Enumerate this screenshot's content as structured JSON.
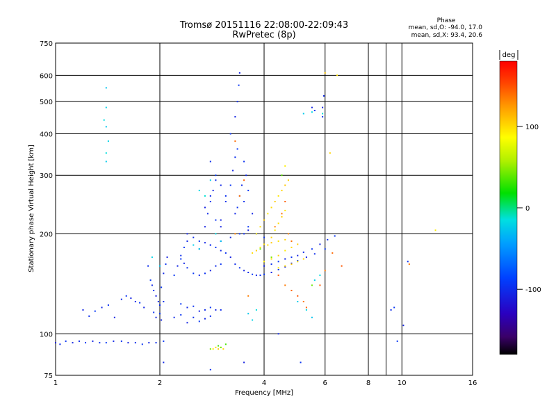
{
  "header": {
    "title": "Tromsø 20151116 22:08:00-22:09:43",
    "subtitle": "RwPretec (8p)"
  },
  "phase_box": {
    "heading": "Phase",
    "line_o": "mean, sd,O: -94.0, 17.0",
    "line_x": "mean, sd,X:  93.4, 20.6"
  },
  "colorbar": {
    "unit_label": "deg",
    "ticks": [
      {
        "value": 100,
        "label": "100"
      },
      {
        "value": 0,
        "label": "0"
      },
      {
        "value": -100,
        "label": "-100"
      }
    ],
    "range": [
      -180,
      180
    ]
  },
  "chart_data": {
    "type": "scatter",
    "title": "Tromsø 20151116 22:08:00-22:09:43",
    "subtitle": "RwPretec (8p)",
    "xlabel": "Frequency [MHz]",
    "ylabel": "Stationary phase Virtual Height [km]",
    "x_scale": "log",
    "y_scale": "log",
    "xlim": [
      1,
      16
    ],
    "ylim": [
      75,
      750
    ],
    "x_ticks": [
      {
        "value": 1,
        "label": "1"
      },
      {
        "value": 2,
        "label": "2"
      },
      {
        "value": 4,
        "label": "4"
      },
      {
        "value": 6,
        "label": "6"
      },
      {
        "value": 8,
        "label": "8"
      },
      {
        "value": 10,
        "label": "10"
      },
      {
        "value": 16,
        "label": "16"
      }
    ],
    "x_grid": [
      2,
      4,
      6,
      8,
      10
    ],
    "x_minor": [
      9
    ],
    "y_ticks": [
      {
        "value": 75,
        "label": "75"
      },
      {
        "value": 100,
        "label": "100"
      },
      {
        "value": 200,
        "label": "200"
      },
      {
        "value": 300,
        "label": "300"
      },
      {
        "value": 400,
        "label": "400"
      },
      {
        "value": 500,
        "label": "500"
      },
      {
        "value": 600,
        "label": "600"
      },
      {
        "value": 750,
        "label": "750"
      }
    ],
    "y_grid": [
      100,
      200,
      300,
      400,
      500,
      600
    ],
    "grid": true,
    "color_scale": "phase, rainbow, -180 to 180 deg",
    "series": [
      {
        "mode": "O",
        "phase": -100,
        "points": [
          [
            1.0,
            94
          ],
          [
            1.03,
            93
          ],
          [
            1.07,
            95
          ],
          [
            1.12,
            94
          ],
          [
            1.17,
            95
          ],
          [
            1.22,
            94
          ],
          [
            1.28,
            95
          ],
          [
            1.34,
            94
          ],
          [
            1.4,
            94
          ],
          [
            1.47,
            95
          ],
          [
            1.55,
            95
          ],
          [
            1.62,
            94
          ],
          [
            1.7,
            94
          ],
          [
            1.78,
            93
          ],
          [
            1.86,
            94
          ],
          [
            1.95,
            94
          ],
          [
            2.05,
            95
          ],
          [
            1.2,
            118
          ],
          [
            1.25,
            113
          ],
          [
            1.3,
            117
          ],
          [
            1.36,
            120
          ],
          [
            1.42,
            122
          ],
          [
            1.48,
            112
          ],
          [
            1.55,
            127
          ],
          [
            1.6,
            130
          ],
          [
            1.65,
            128
          ],
          [
            1.7,
            125
          ],
          [
            1.75,
            124
          ],
          [
            1.8,
            120
          ],
          [
            1.85,
            160
          ],
          [
            1.88,
            145
          ],
          [
            1.9,
            140
          ],
          [
            1.92,
            135
          ],
          [
            1.95,
            130
          ],
          [
            1.98,
            125
          ],
          [
            1.92,
            116
          ],
          [
            1.95,
            112
          ],
          [
            2.0,
            122
          ],
          [
            2.0,
            115
          ],
          [
            2.02,
            110
          ],
          [
            2.05,
            125
          ],
          [
            2.02,
            138
          ],
          [
            2.05,
            152
          ],
          [
            2.08,
            162
          ],
          [
            2.1,
            170
          ],
          [
            2.2,
            112
          ],
          [
            2.3,
            114
          ],
          [
            2.4,
            108
          ],
          [
            2.5,
            112
          ],
          [
            2.6,
            109
          ],
          [
            2.7,
            111
          ],
          [
            2.8,
            113
          ],
          [
            2.3,
            123
          ],
          [
            2.4,
            120
          ],
          [
            2.5,
            121
          ],
          [
            2.6,
            117
          ],
          [
            2.7,
            118
          ],
          [
            2.8,
            120
          ],
          [
            2.9,
            118
          ],
          [
            3.0,
            118
          ],
          [
            2.3,
            168
          ],
          [
            2.35,
            163
          ],
          [
            2.4,
            158
          ],
          [
            2.5,
            152
          ],
          [
            2.6,
            150
          ],
          [
            2.7,
            152
          ],
          [
            2.8,
            155
          ],
          [
            2.9,
            160
          ],
          [
            3.0,
            162
          ],
          [
            2.4,
            200
          ],
          [
            2.5,
            195
          ],
          [
            2.6,
            190
          ],
          [
            2.7,
            188
          ],
          [
            2.8,
            185
          ],
          [
            2.9,
            182
          ],
          [
            3.0,
            178
          ],
          [
            3.1,
            175
          ],
          [
            3.2,
            170
          ],
          [
            3.3,
            162
          ],
          [
            3.4,
            158
          ],
          [
            3.5,
            155
          ],
          [
            3.6,
            153
          ],
          [
            3.7,
            151
          ],
          [
            3.8,
            150
          ],
          [
            3.9,
            150
          ],
          [
            4.0,
            151
          ],
          [
            4.2,
            153
          ],
          [
            4.4,
            156
          ],
          [
            4.6,
            159
          ],
          [
            4.8,
            163
          ],
          [
            5.0,
            166
          ],
          [
            5.3,
            170
          ],
          [
            5.6,
            174
          ],
          [
            6.0,
            180
          ],
          [
            4.0,
            160
          ],
          [
            4.2,
            162
          ],
          [
            4.4,
            165
          ],
          [
            4.6,
            168
          ],
          [
            4.8,
            170
          ],
          [
            5.0,
            172
          ],
          [
            5.2,
            176
          ],
          [
            5.5,
            180
          ],
          [
            5.8,
            186
          ],
          [
            6.1,
            192
          ],
          [
            6.4,
            197
          ],
          [
            2.6,
            180
          ],
          [
            2.8,
            185
          ],
          [
            3.0,
            190
          ],
          [
            3.2,
            195
          ],
          [
            3.4,
            200
          ],
          [
            3.6,
            205
          ],
          [
            3.8,
            200
          ],
          [
            4.0,
            195
          ],
          [
            3.0,
            220
          ],
          [
            3.1,
            250
          ],
          [
            3.2,
            280
          ],
          [
            3.25,
            310
          ],
          [
            3.3,
            340
          ],
          [
            3.35,
            360
          ],
          [
            3.3,
            230
          ],
          [
            3.35,
            240
          ],
          [
            3.4,
            260
          ],
          [
            3.45,
            280
          ],
          [
            3.2,
            400
          ],
          [
            3.3,
            450
          ],
          [
            3.35,
            500
          ],
          [
            3.38,
            560
          ],
          [
            3.4,
            610
          ],
          [
            2.8,
            330
          ],
          [
            2.9,
            300
          ],
          [
            3.0,
            280
          ],
          [
            3.1,
            260
          ],
          [
            2.7,
            240
          ],
          [
            2.8,
            260
          ],
          [
            2.9,
            220
          ],
          [
            3.0,
            210
          ],
          [
            3.5,
            200
          ],
          [
            3.6,
            210
          ],
          [
            3.7,
            230
          ],
          [
            3.5,
            250
          ],
          [
            3.6,
            270
          ],
          [
            3.55,
            300
          ],
          [
            3.5,
            330
          ],
          [
            2.7,
            210
          ],
          [
            2.75,
            230
          ],
          [
            2.8,
            250
          ],
          [
            2.85,
            270
          ],
          [
            2.9,
            290
          ],
          [
            2.2,
            150
          ],
          [
            2.25,
            160
          ],
          [
            2.3,
            172
          ],
          [
            2.35,
            182
          ],
          [
            2.4,
            190
          ],
          [
            5.9,
            450
          ],
          [
            5.9,
            480
          ],
          [
            5.95,
            520
          ],
          [
            5.6,
            470
          ],
          [
            5.5,
            480
          ],
          [
            9.3,
            118
          ],
          [
            9.5,
            120
          ],
          [
            10.1,
            106
          ],
          [
            10.4,
            165
          ],
          [
            9.7,
            95
          ],
          [
            2.05,
            82
          ],
          [
            2.8,
            78
          ],
          [
            3.5,
            82
          ],
          [
            4.4,
            100
          ],
          [
            5.1,
            82
          ]
        ]
      },
      {
        "mode": "X",
        "phase": 100,
        "points": [
          [
            3.8,
            200
          ],
          [
            3.9,
            210
          ],
          [
            4.0,
            220
          ],
          [
            4.1,
            230
          ],
          [
            4.2,
            240
          ],
          [
            4.3,
            250
          ],
          [
            4.4,
            260
          ],
          [
            4.5,
            270
          ],
          [
            4.6,
            280
          ],
          [
            4.1,
            185
          ],
          [
            4.2,
            195
          ],
          [
            4.3,
            205
          ],
          [
            4.4,
            215
          ],
          [
            4.5,
            225
          ],
          [
            4.6,
            235
          ],
          [
            3.7,
            175
          ],
          [
            3.8,
            178
          ],
          [
            3.9,
            182
          ],
          [
            4.0,
            186
          ],
          [
            4.2,
            188
          ],
          [
            4.4,
            190
          ],
          [
            4.6,
            192
          ],
          [
            4.0,
            165
          ],
          [
            4.2,
            168
          ],
          [
            4.4,
            172
          ],
          [
            4.6,
            178
          ],
          [
            4.8,
            182
          ],
          [
            5.0,
            186
          ],
          [
            4.4,
            158
          ],
          [
            4.6,
            160
          ],
          [
            4.8,
            162
          ],
          [
            5.0,
            165
          ],
          [
            5.2,
            168
          ],
          [
            4.6,
            320
          ],
          [
            4.5,
            300
          ],
          [
            4.7,
            290
          ],
          [
            2.85,
            90
          ],
          [
            2.9,
            91
          ],
          [
            2.95,
            90
          ],
          [
            3.0,
            91
          ],
          [
            3.05,
            90
          ],
          [
            6.0,
            610
          ],
          [
            6.5,
            600
          ],
          [
            6.2,
            350
          ],
          [
            12.5,
            205
          ]
        ]
      },
      {
        "mode": "X-low",
        "phase": 140,
        "points": [
          [
            4.3,
            210
          ],
          [
            4.5,
            230
          ],
          [
            4.6,
            250
          ],
          [
            4.7,
            200
          ],
          [
            4.8,
            190
          ],
          [
            4.4,
            150
          ],
          [
            4.6,
            140
          ],
          [
            4.8,
            135
          ],
          [
            5.0,
            130
          ],
          [
            5.2,
            125
          ],
          [
            5.3,
            120
          ],
          [
            3.3,
            200
          ],
          [
            3.4,
            260
          ],
          [
            3.5,
            290
          ],
          [
            3.6,
            130
          ],
          [
            3.3,
            380
          ],
          [
            5.8,
            140
          ],
          [
            6.0,
            155
          ],
          [
            6.3,
            175
          ],
          [
            6.7,
            160
          ],
          [
            10.5,
            162
          ]
        ]
      },
      {
        "mode": "mixed",
        "phase": -20,
        "points": [
          [
            1.4,
            550
          ],
          [
            1.4,
            480
          ],
          [
            1.38,
            440
          ],
          [
            1.4,
            420
          ],
          [
            1.42,
            380
          ],
          [
            1.4,
            350
          ],
          [
            1.4,
            330
          ],
          [
            2.6,
            270
          ],
          [
            2.7,
            260
          ],
          [
            2.8,
            290
          ],
          [
            2.9,
            200
          ],
          [
            3.0,
            190
          ],
          [
            2.5,
            185
          ],
          [
            2.6,
            180
          ],
          [
            3.6,
            115
          ],
          [
            3.7,
            110
          ],
          [
            3.8,
            118
          ],
          [
            5.2,
            460
          ],
          [
            5.5,
            465
          ],
          [
            5.9,
            460
          ],
          [
            5.0,
            125
          ],
          [
            5.3,
            118
          ],
          [
            5.5,
            112
          ],
          [
            5.6,
            145
          ],
          [
            5.8,
            150
          ],
          [
            2.0,
            160
          ],
          [
            1.9,
            170
          ]
        ]
      },
      {
        "mode": "mixed-green",
        "phase": 40,
        "points": [
          [
            2.95,
            92
          ],
          [
            3.0,
            91
          ],
          [
            2.8,
            90
          ],
          [
            3.1,
            93
          ],
          [
            3.9,
            180
          ],
          [
            4.2,
            170
          ],
          [
            4.5,
            300
          ],
          [
            5.5,
            140
          ]
        ]
      }
    ]
  }
}
